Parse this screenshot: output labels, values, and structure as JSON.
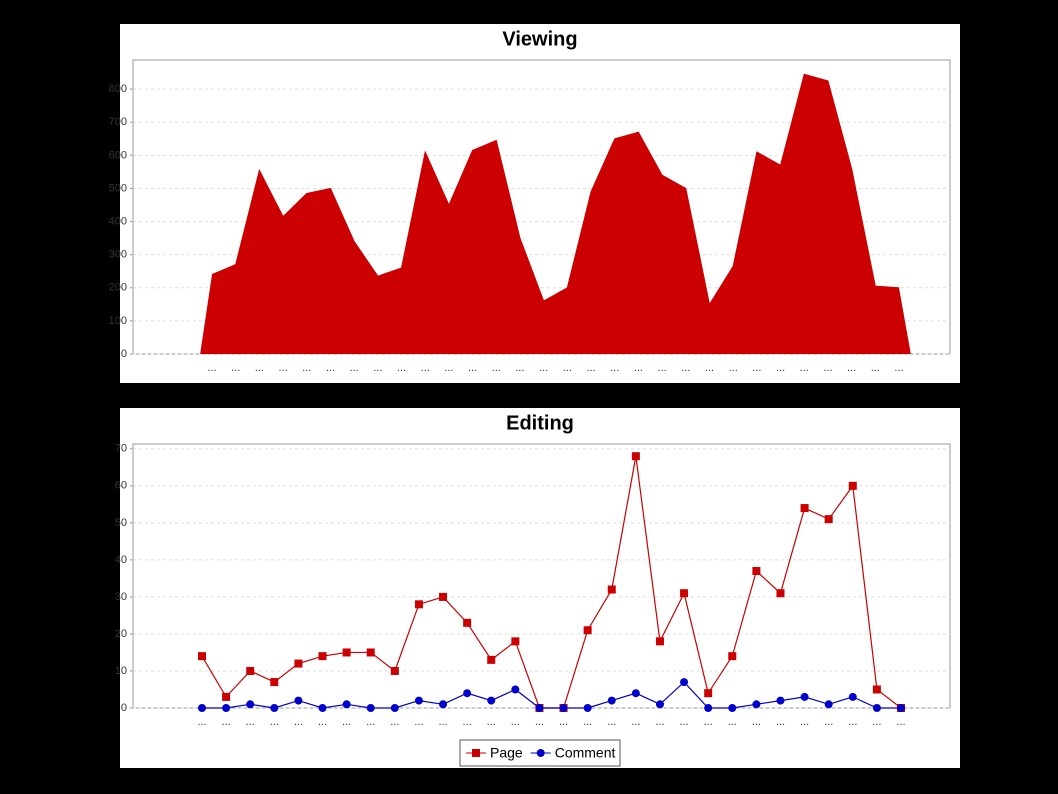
{
  "chart_data": [
    {
      "type": "area",
      "title": "Viewing",
      "categories": [
        "...",
        "...",
        "...",
        "...",
        "...",
        "...",
        "...",
        "...",
        "...",
        "...",
        "...",
        "...",
        "...",
        "...",
        "...",
        "...",
        "...",
        "...",
        "...",
        "...",
        "...",
        "...",
        "...",
        "...",
        "...",
        "...",
        "...",
        "...",
        "...",
        "..."
      ],
      "series": [
        {
          "name": null,
          "color": "#cc0000",
          "values": [
            240,
            270,
            555,
            415,
            485,
            500,
            340,
            235,
            260,
            610,
            450,
            615,
            645,
            350,
            160,
            200,
            490,
            650,
            670,
            540,
            500,
            150,
            265,
            610,
            570,
            845,
            825,
            560,
            205,
            200
          ]
        }
      ],
      "ylim": [
        0,
        888
      ],
      "yticks": [
        0,
        100,
        200,
        300,
        400,
        500,
        600,
        700,
        800
      ],
      "grid": true
    },
    {
      "type": "line",
      "title": "Editing",
      "categories": [
        "...",
        "...",
        "...",
        "...",
        "...",
        "...",
        "...",
        "...",
        "...",
        "...",
        "...",
        "...",
        "...",
        "...",
        "...",
        "...",
        "...",
        "...",
        "...",
        "...",
        "...",
        "...",
        "...",
        "...",
        "...",
        "...",
        "...",
        "...",
        "...",
        "..."
      ],
      "series": [
        {
          "name": "Page",
          "color": "#cc0000",
          "values": [
            14,
            3,
            10,
            7,
            12,
            14,
            15,
            15,
            10,
            28,
            30,
            23,
            13,
            18,
            0,
            0,
            21,
            32,
            68,
            18,
            31,
            4,
            14,
            37,
            31,
            54,
            51,
            60,
            5,
            0
          ]
        },
        {
          "name": "Comment",
          "color": "#0000cc",
          "values": [
            0,
            0,
            1,
            0,
            2,
            0,
            1,
            0,
            0,
            2,
            1,
            4,
            2,
            5,
            0,
            0,
            0,
            2,
            4,
            1,
            7,
            0,
            0,
            1,
            2,
            3,
            1,
            3,
            0,
            0
          ]
        }
      ],
      "ylim": [
        0,
        71.3
      ],
      "yticks": [
        0,
        10,
        20,
        30,
        40,
        50,
        60,
        70
      ],
      "grid": true,
      "legend": "bottom"
    }
  ]
}
